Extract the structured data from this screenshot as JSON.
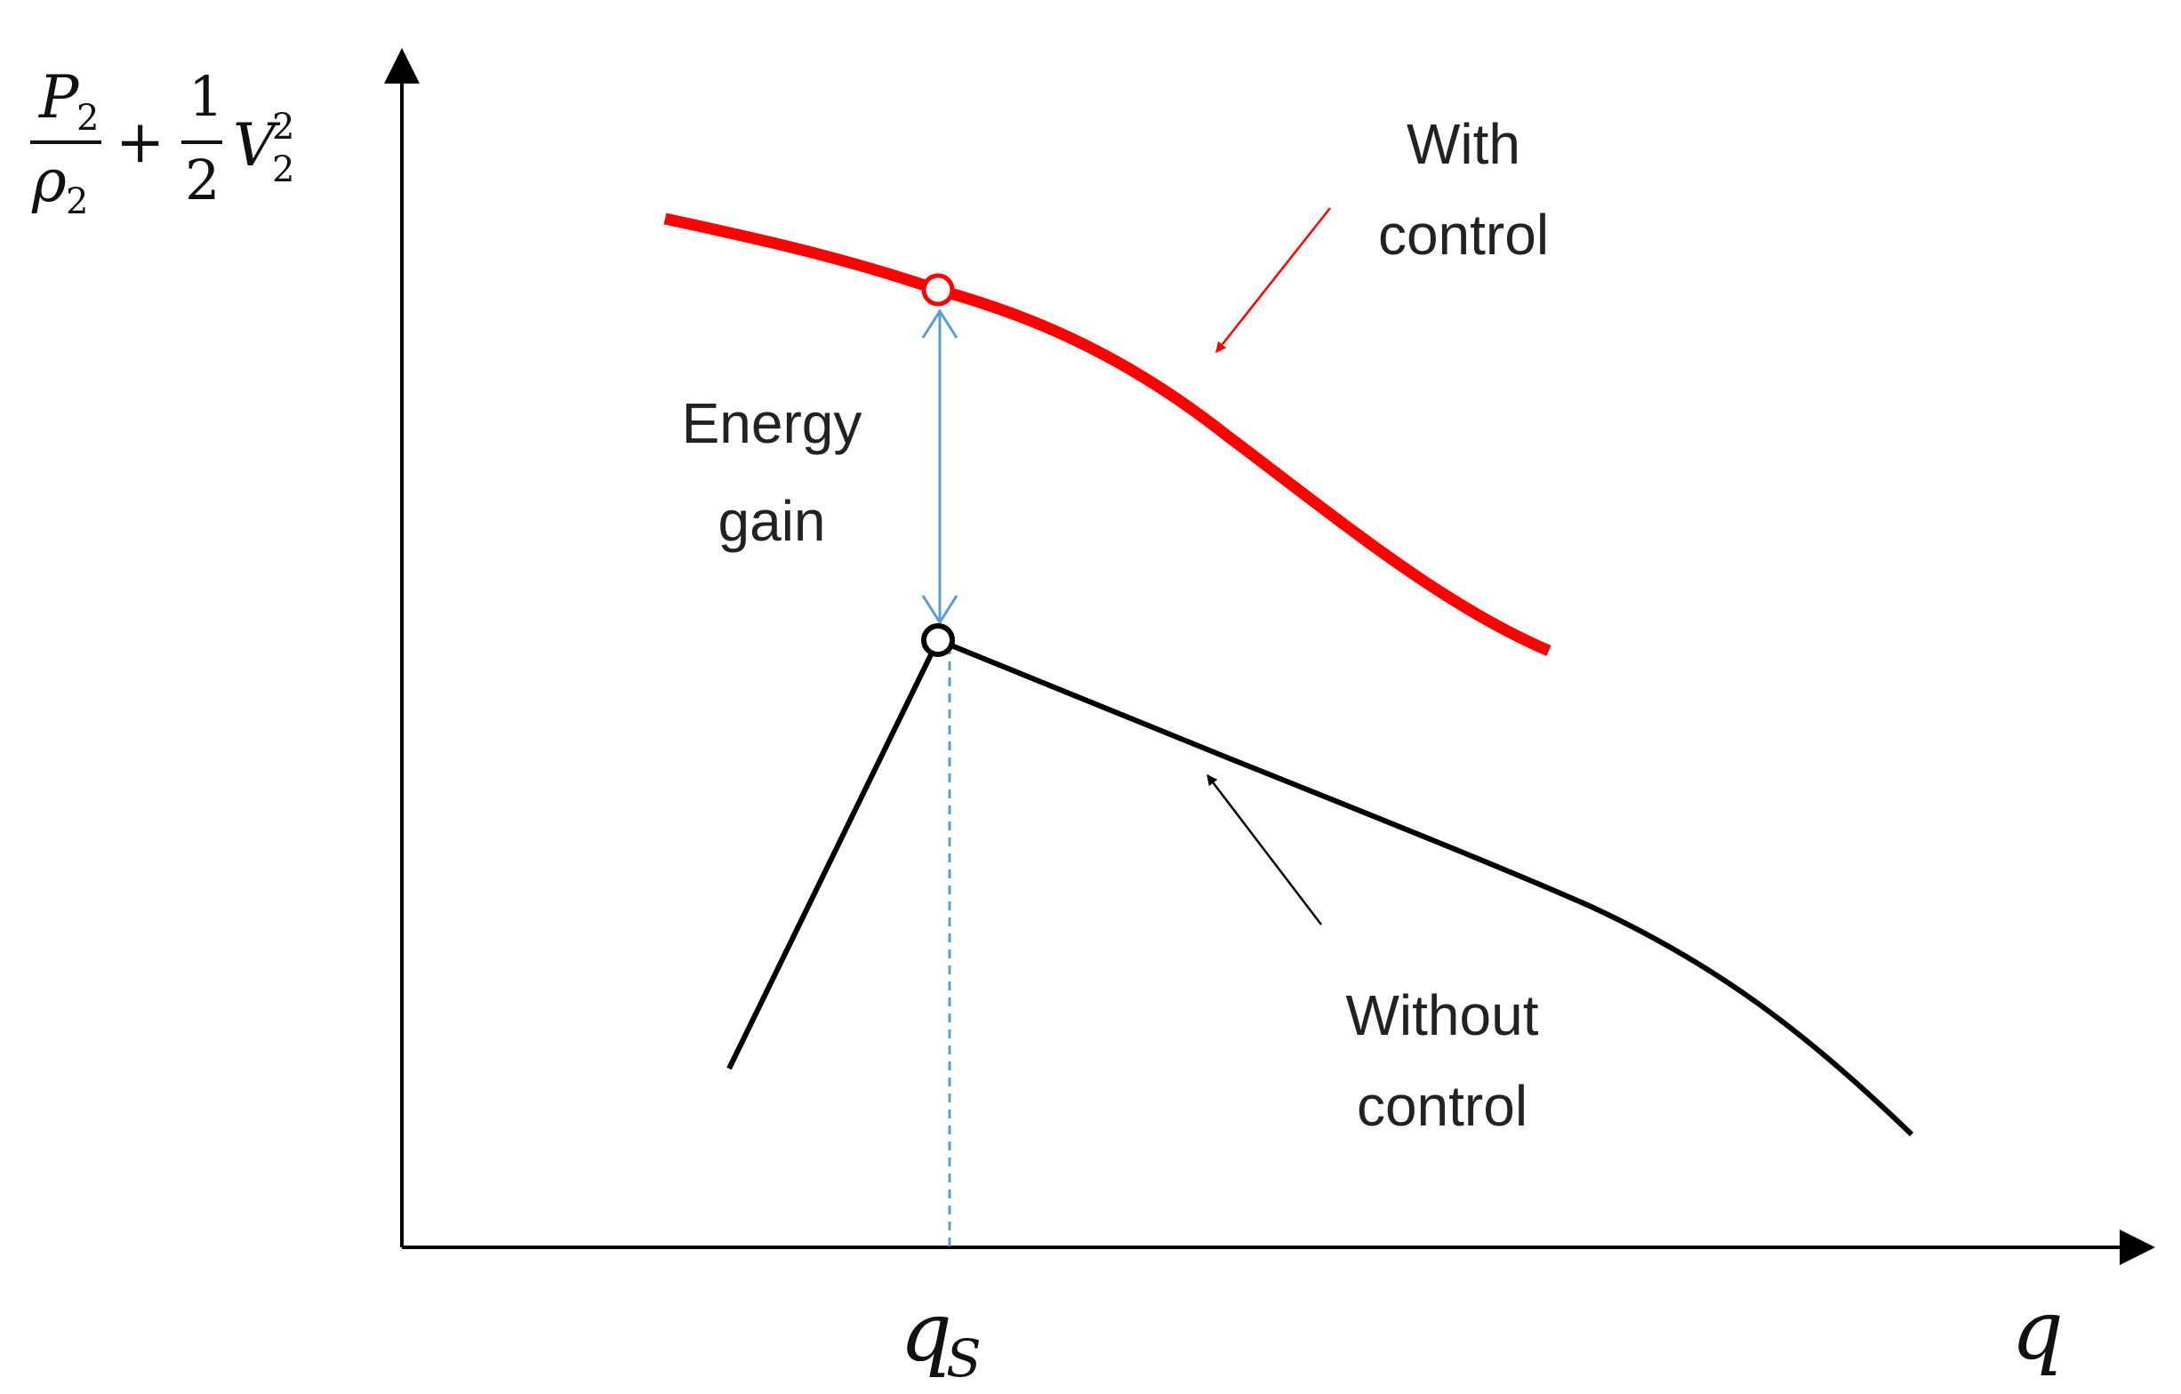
{
  "y_axis_label": {
    "p_numerator": "P",
    "p_sub": "2",
    "rho_denominator": "ρ",
    "rho_sub": "2",
    "plus": "+",
    "half_numerator": "1",
    "half_denominator": "2",
    "v_symbol": "V",
    "v_sub": "2",
    "v_sup": "2"
  },
  "x_axis_label": "q",
  "qs_label": {
    "symbol": "q",
    "sub": "S"
  },
  "with_control_label": {
    "line1": "With",
    "line2": "control"
  },
  "without_control_label": {
    "line1": "Without",
    "line2": "control"
  },
  "energy_gain_label": {
    "line1": "Energy",
    "line2": "gain"
  },
  "colors": {
    "with_control_curve": "#ff0000",
    "without_control_curve": "#000000",
    "energy_arrow": "#5b9bd5",
    "axes": "#000000"
  }
}
